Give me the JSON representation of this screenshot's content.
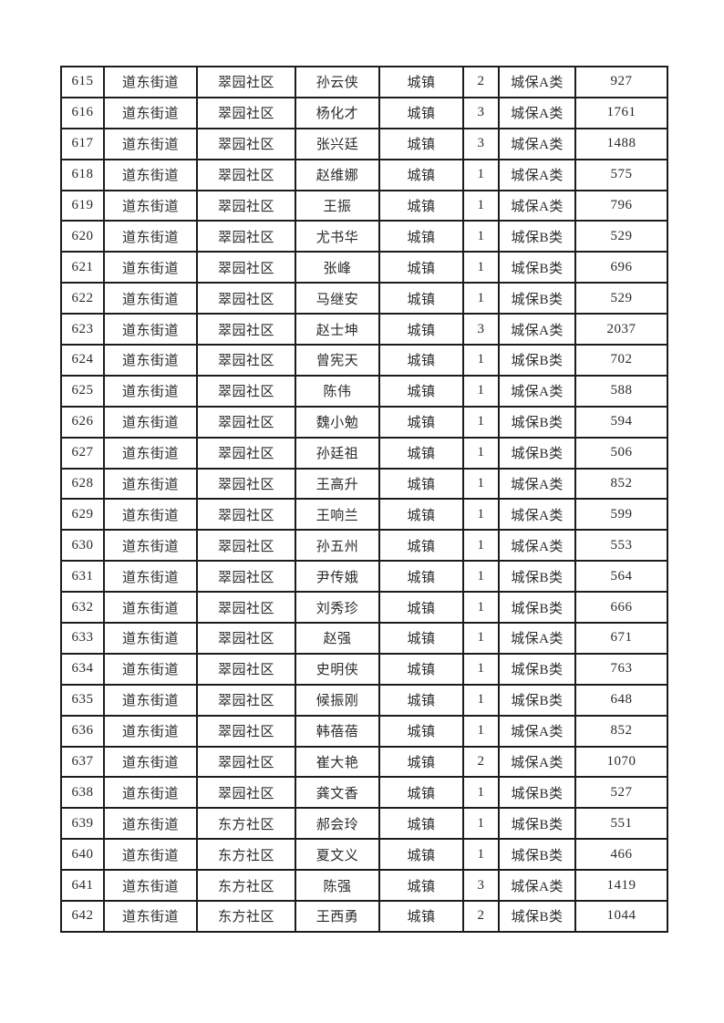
{
  "page": {
    "background_color": "#ffffff",
    "text_color": "#2b2b2b",
    "grid_border_color": "#1c1c1c"
  },
  "table": {
    "rows": [
      [
        "615",
        "道东街道",
        "翠园社区",
        "孙云侠",
        "城镇",
        "2",
        "城保A类",
        "927"
      ],
      [
        "616",
        "道东街道",
        "翠园社区",
        "杨化才",
        "城镇",
        "3",
        "城保A类",
        "1761"
      ],
      [
        "617",
        "道东街道",
        "翠园社区",
        "张兴廷",
        "城镇",
        "3",
        "城保A类",
        "1488"
      ],
      [
        "618",
        "道东街道",
        "翠园社区",
        "赵维娜",
        "城镇",
        "1",
        "城保A类",
        "575"
      ],
      [
        "619",
        "道东街道",
        "翠园社区",
        "王振",
        "城镇",
        "1",
        "城保A类",
        "796"
      ],
      [
        "620",
        "道东街道",
        "翠园社区",
        "尤书华",
        "城镇",
        "1",
        "城保B类",
        "529"
      ],
      [
        "621",
        "道东街道",
        "翠园社区",
        "张峰",
        "城镇",
        "1",
        "城保B类",
        "696"
      ],
      [
        "622",
        "道东街道",
        "翠园社区",
        "马继安",
        "城镇",
        "1",
        "城保B类",
        "529"
      ],
      [
        "623",
        "道东街道",
        "翠园社区",
        "赵士坤",
        "城镇",
        "3",
        "城保A类",
        "2037"
      ],
      [
        "624",
        "道东街道",
        "翠园社区",
        "曾宪天",
        "城镇",
        "1",
        "城保B类",
        "702"
      ],
      [
        "625",
        "道东街道",
        "翠园社区",
        "陈伟",
        "城镇",
        "1",
        "城保A类",
        "588"
      ],
      [
        "626",
        "道东街道",
        "翠园社区",
        "魏小勉",
        "城镇",
        "1",
        "城保B类",
        "594"
      ],
      [
        "627",
        "道东街道",
        "翠园社区",
        "孙廷祖",
        "城镇",
        "1",
        "城保B类",
        "506"
      ],
      [
        "628",
        "道东街道",
        "翠园社区",
        "王高升",
        "城镇",
        "1",
        "城保A类",
        "852"
      ],
      [
        "629",
        "道东街道",
        "翠园社区",
        "王响兰",
        "城镇",
        "1",
        "城保A类",
        "599"
      ],
      [
        "630",
        "道东街道",
        "翠园社区",
        "孙五州",
        "城镇",
        "1",
        "城保A类",
        "553"
      ],
      [
        "631",
        "道东街道",
        "翠园社区",
        "尹传娥",
        "城镇",
        "1",
        "城保B类",
        "564"
      ],
      [
        "632",
        "道东街道",
        "翠园社区",
        "刘秀珍",
        "城镇",
        "1",
        "城保B类",
        "666"
      ],
      [
        "633",
        "道东街道",
        "翠园社区",
        "赵强",
        "城镇",
        "1",
        "城保A类",
        "671"
      ],
      [
        "634",
        "道东街道",
        "翠园社区",
        "史明侠",
        "城镇",
        "1",
        "城保B类",
        "763"
      ],
      [
        "635",
        "道东街道",
        "翠园社区",
        "候振刚",
        "城镇",
        "1",
        "城保B类",
        "648"
      ],
      [
        "636",
        "道东街道",
        "翠园社区",
        "韩蓓蓓",
        "城镇",
        "1",
        "城保A类",
        "852"
      ],
      [
        "637",
        "道东街道",
        "翠园社区",
        "崔大艳",
        "城镇",
        "2",
        "城保A类",
        "1070"
      ],
      [
        "638",
        "道东街道",
        "翠园社区",
        "龚文香",
        "城镇",
        "1",
        "城保B类",
        "527"
      ],
      [
        "639",
        "道东街道",
        "东方社区",
        "郝会玲",
        "城镇",
        "1",
        "城保B类",
        "551"
      ],
      [
        "640",
        "道东街道",
        "东方社区",
        "夏文义",
        "城镇",
        "1",
        "城保B类",
        "466"
      ],
      [
        "641",
        "道东街道",
        "东方社区",
        "陈强",
        "城镇",
        "3",
        "城保A类",
        "1419"
      ],
      [
        "642",
        "道东街道",
        "东方社区",
        "王西勇",
        "城镇",
        "2",
        "城保B类",
        "1044"
      ]
    ]
  }
}
